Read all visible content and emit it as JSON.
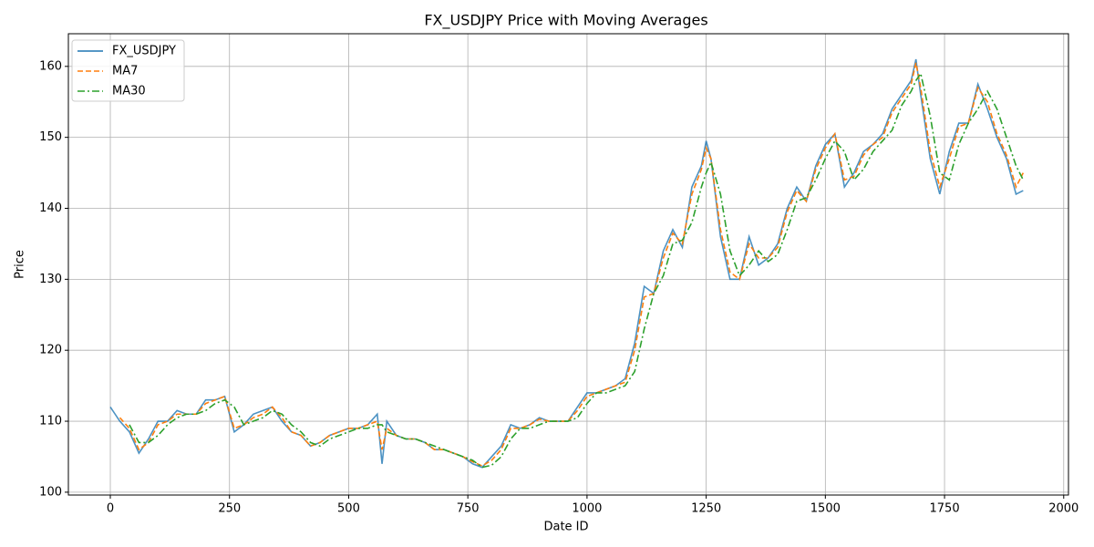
{
  "chart_data": {
    "type": "line",
    "title": "FX_USDJPY Price with Moving Averages",
    "xlabel": "Date ID",
    "ylabel": "Price",
    "x": [
      0,
      20,
      40,
      60,
      80,
      100,
      120,
      140,
      160,
      180,
      200,
      220,
      240,
      260,
      280,
      300,
      320,
      340,
      360,
      380,
      400,
      420,
      440,
      460,
      480,
      500,
      520,
      540,
      560,
      570,
      580,
      600,
      620,
      640,
      660,
      680,
      700,
      720,
      740,
      760,
      780,
      800,
      820,
      840,
      860,
      880,
      900,
      920,
      940,
      960,
      980,
      1000,
      1020,
      1040,
      1060,
      1080,
      1100,
      1120,
      1140,
      1160,
      1180,
      1200,
      1220,
      1240,
      1250,
      1260,
      1280,
      1300,
      1320,
      1340,
      1360,
      1380,
      1400,
      1420,
      1440,
      1460,
      1480,
      1500,
      1520,
      1540,
      1560,
      1580,
      1600,
      1620,
      1640,
      1660,
      1680,
      1690,
      1700,
      1720,
      1740,
      1760,
      1780,
      1800,
      1820,
      1840,
      1860,
      1880,
      1900,
      1915
    ],
    "series": [
      {
        "name": "FX_USDJPY",
        "color": "#1f77b4",
        "dash": "solid",
        "values": [
          112,
          110,
          108.5,
          105.5,
          107.5,
          110,
          110,
          111.5,
          111,
          111,
          113,
          113,
          113.5,
          108.5,
          109.5,
          111,
          111.5,
          112,
          110,
          108.5,
          108,
          106.5,
          107,
          108,
          108.5,
          109,
          109,
          109.5,
          111,
          104,
          110,
          108,
          107.5,
          107.5,
          107,
          106,
          106,
          105.5,
          105,
          104,
          103.5,
          105,
          106.5,
          109.5,
          109,
          109.5,
          110.5,
          110,
          110,
          110,
          112,
          114,
          114,
          114.5,
          115,
          116,
          121,
          129,
          128,
          134,
          137,
          134.5,
          143,
          146,
          149.5,
          147,
          136,
          130,
          130,
          136,
          132,
          133,
          135,
          140,
          143,
          141,
          146,
          149,
          150.5,
          143,
          145,
          148,
          149,
          150.5,
          154,
          156,
          158,
          161,
          156,
          147,
          142,
          148,
          152,
          152,
          157.5,
          154,
          150,
          147,
          142,
          142.5
        ]
      },
      {
        "name": "MA7",
        "color": "#ff7f0e",
        "dash": "dashed",
        "values": [
          null,
          110.5,
          109,
          106,
          107,
          109.5,
          110,
          111,
          111,
          111,
          112.5,
          113,
          113.5,
          109,
          109.5,
          110.5,
          111,
          112,
          110.5,
          108.5,
          108,
          106.5,
          107,
          108,
          108.5,
          109,
          109,
          109.5,
          110,
          106,
          109,
          108,
          107.5,
          107.5,
          107,
          106,
          106,
          105.5,
          105,
          104.3,
          103.7,
          104.5,
          106,
          109,
          109,
          109.5,
          110.3,
          110,
          110,
          110,
          111.5,
          113.5,
          114,
          114.5,
          115,
          115.5,
          120,
          127.5,
          128,
          133,
          136.5,
          135,
          142,
          145.5,
          148.5,
          147,
          137,
          131,
          130,
          135,
          133,
          133,
          134.5,
          139.5,
          142.5,
          141,
          145.5,
          148.5,
          150.5,
          144,
          144.5,
          147.5,
          149,
          150,
          153.5,
          155.5,
          157.5,
          160.5,
          157,
          148,
          143,
          147,
          151.5,
          152,
          157,
          155,
          150.5,
          147.5,
          143,
          145
        ]
      },
      {
        "name": "MA30",
        "color": "#2ca02c",
        "dash": "dashdot",
        "values": [
          null,
          null,
          109.5,
          107,
          107,
          108,
          109.5,
          110.5,
          111,
          111,
          111.5,
          112.5,
          113,
          112,
          109.5,
          110,
          110.5,
          111.5,
          111,
          109.5,
          108.5,
          107,
          106.5,
          107.5,
          108,
          108.5,
          109,
          109,
          109.5,
          109.5,
          108.5,
          108,
          107.5,
          107.5,
          107,
          106.5,
          106,
          105.5,
          105,
          104.5,
          103.5,
          103.8,
          105,
          107.5,
          109,
          109,
          109.5,
          110,
          110,
          110,
          110.5,
          112.5,
          114,
          114,
          114.5,
          115,
          117,
          123,
          128,
          130.5,
          135,
          135.5,
          138,
          143,
          145,
          146.5,
          142,
          134,
          130.5,
          132,
          134,
          132.5,
          133.5,
          137,
          141,
          141.5,
          144,
          147,
          149.5,
          148,
          144,
          145.5,
          148,
          149.5,
          151,
          154.5,
          156.5,
          158,
          159,
          153,
          145,
          144,
          149,
          152,
          154,
          156.5,
          154,
          150,
          146,
          144
        ]
      }
    ],
    "xlim": [
      -88,
      2010
    ],
    "xticks": [
      0,
      250,
      500,
      750,
      1000,
      1250,
      1500,
      1750,
      2000
    ],
    "ylim": [
      99.6,
      164.6
    ],
    "yticks": [
      100,
      110,
      120,
      130,
      140,
      150,
      160
    ],
    "grid": true,
    "legend": "upper-left"
  }
}
